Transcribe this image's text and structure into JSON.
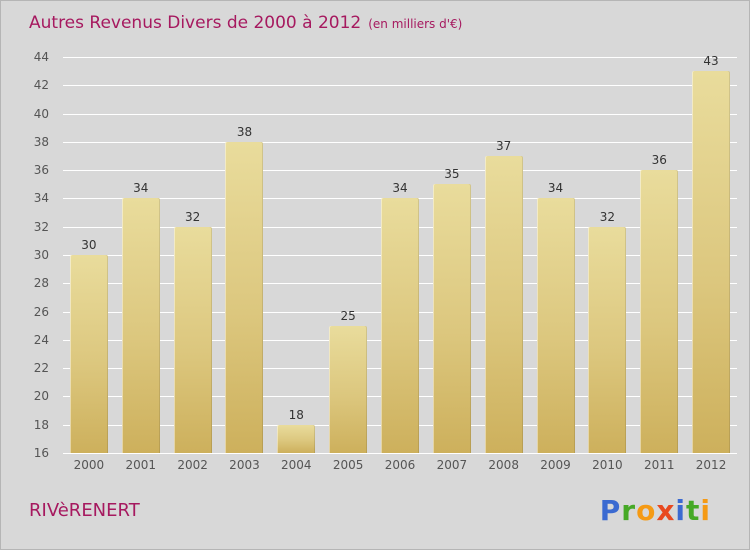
{
  "header": {
    "title": "Autres Revenus Divers de 2000 à 2012",
    "subtitle": "(en milliers d'€)"
  },
  "footer": {
    "company": "RIVèRENERT"
  },
  "logo": {
    "name": "Proxiti",
    "letters": [
      {
        "char": "P",
        "color": "#3b6ad1"
      },
      {
        "char": "r",
        "color": "#46a926"
      },
      {
        "char": "o",
        "color": "#f59a14"
      },
      {
        "char": "x",
        "color": "#e8491f"
      },
      {
        "char": "i",
        "color": "#3b6ad1"
      },
      {
        "char": "t",
        "color": "#46a926"
      },
      {
        "char": "i",
        "color": "#f59a14"
      }
    ]
  },
  "colors": {
    "accent_pink": "#a6195f",
    "bar_gold": "#d6c06a",
    "background_gray": "#d8d8d8",
    "gridline_white": "#ffffff",
    "axis_text": "#555555",
    "value_text": "#333333"
  },
  "chart_data": {
    "type": "bar",
    "title": "Autres Revenus Divers de 2000 à 2012 (en milliers d'€)",
    "categories": [
      "2000",
      "2001",
      "2002",
      "2003",
      "2004",
      "2005",
      "2006",
      "2007",
      "2008",
      "2009",
      "2010",
      "2011",
      "2012"
    ],
    "values": [
      30,
      34,
      32,
      38,
      18,
      25,
      34,
      35,
      37,
      34,
      32,
      36,
      43
    ],
    "xlabel": "",
    "ylabel": "",
    "ylim": [
      16,
      44
    ],
    "ytick_step": 2,
    "grid": true,
    "legend": false
  }
}
